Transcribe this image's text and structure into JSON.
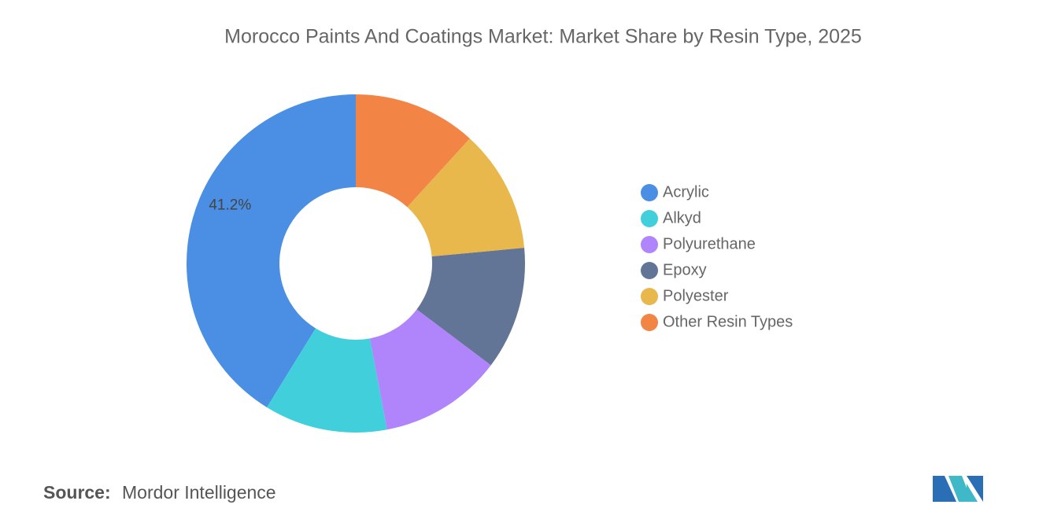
{
  "chart_data": {
    "type": "pie",
    "title": "Morocco Paints And Coatings Market: Market Share by Resin Type, 2025",
    "categories": [
      "Acrylic",
      "Alkyd",
      "Polyurethane",
      "Epoxy",
      "Polyester",
      "Other Resin Types"
    ],
    "values": [
      41.2,
      11.76,
      11.76,
      11.76,
      11.76,
      11.76
    ],
    "value_labels": [
      "41.2%",
      null,
      null,
      null,
      null,
      null
    ],
    "colors": [
      "#4a8fe3",
      "#41d0db",
      "#b085fb",
      "#637597",
      "#e9b84c",
      "#f28445"
    ],
    "donut": true,
    "legend": "right"
  },
  "source": {
    "label": "Source:",
    "text": "Mordor Intelligence"
  }
}
